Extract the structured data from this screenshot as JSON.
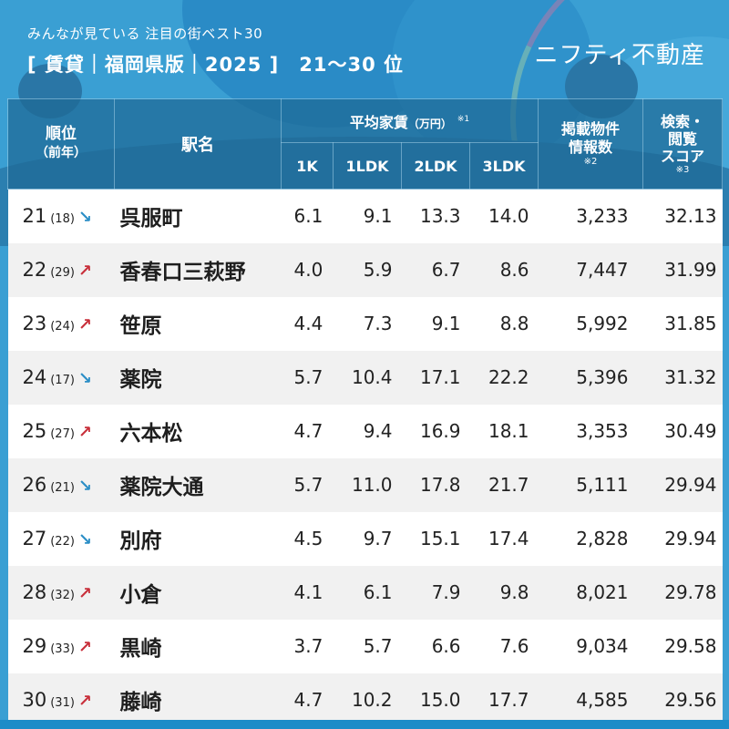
{
  "header": {
    "subtitle": "みんなが見ている 注目の街ベスト30",
    "title": "[ 賃貸｜福岡県版｜2025 ]",
    "rank_range": "21〜30 位",
    "logo": "ニフティ不動産"
  },
  "table": {
    "columns": {
      "rank": "順位",
      "rank_sub": "（前年）",
      "station": "駅名",
      "rent_group": "平均家賃",
      "rent_unit": "（万円）",
      "rent_note": "※1",
      "rent_types": [
        "1K",
        "1LDK",
        "2LDK",
        "3LDK"
      ],
      "listings_line1": "掲載物件",
      "listings_line2": "情報数",
      "listings_note": "※2",
      "score_line1": "検索・",
      "score_line2": "閲覧",
      "score_line3": "スコア",
      "score_note": "※3"
    },
    "rows": [
      {
        "rank": "21",
        "prev": "(18)",
        "trend": "down",
        "arrow": "↘",
        "station": "呉服町",
        "k1": "6.1",
        "ldk1": "9.1",
        "ldk2": "13.3",
        "ldk3": "14.0",
        "listings": "3,233",
        "score": "32.13"
      },
      {
        "rank": "22",
        "prev": "(29)",
        "trend": "up",
        "arrow": "↗",
        "station": "香春口三萩野",
        "k1": "4.0",
        "ldk1": "5.9",
        "ldk2": "6.7",
        "ldk3": "8.6",
        "listings": "7,447",
        "score": "31.99"
      },
      {
        "rank": "23",
        "prev": "(24)",
        "trend": "up",
        "arrow": "↗",
        "station": "笹原",
        "k1": "4.4",
        "ldk1": "7.3",
        "ldk2": "9.1",
        "ldk3": "8.8",
        "listings": "5,992",
        "score": "31.85"
      },
      {
        "rank": "24",
        "prev": "(17)",
        "trend": "down",
        "arrow": "↘",
        "station": "薬院",
        "k1": "5.7",
        "ldk1": "10.4",
        "ldk2": "17.1",
        "ldk3": "22.2",
        "listings": "5,396",
        "score": "31.32"
      },
      {
        "rank": "25",
        "prev": "(27)",
        "trend": "up",
        "arrow": "↗",
        "station": "六本松",
        "k1": "4.7",
        "ldk1": "9.4",
        "ldk2": "16.9",
        "ldk3": "18.1",
        "listings": "3,353",
        "score": "30.49"
      },
      {
        "rank": "26",
        "prev": "(21)",
        "trend": "down",
        "arrow": "↘",
        "station": "薬院大通",
        "k1": "5.7",
        "ldk1": "11.0",
        "ldk2": "17.8",
        "ldk3": "21.7",
        "listings": "5,111",
        "score": "29.94"
      },
      {
        "rank": "27",
        "prev": "(22)",
        "trend": "down",
        "arrow": "↘",
        "station": "別府",
        "k1": "4.5",
        "ldk1": "9.7",
        "ldk2": "15.1",
        "ldk3": "17.4",
        "listings": "2,828",
        "score": "29.94"
      },
      {
        "rank": "28",
        "prev": "(32)",
        "trend": "up",
        "arrow": "↗",
        "station": "小倉",
        "k1": "4.1",
        "ldk1": "6.1",
        "ldk2": "7.9",
        "ldk3": "9.8",
        "listings": "8,021",
        "score": "29.78"
      },
      {
        "rank": "29",
        "prev": "(33)",
        "trend": "up",
        "arrow": "↗",
        "station": "黒崎",
        "k1": "3.7",
        "ldk1": "5.7",
        "ldk2": "6.6",
        "ldk3": "7.6",
        "listings": "9,034",
        "score": "29.58"
      },
      {
        "rank": "30",
        "prev": "(31)",
        "trend": "up",
        "arrow": "↗",
        "station": "藤崎",
        "k1": "4.7",
        "ldk1": "10.2",
        "ldk2": "15.0",
        "ldk3": "17.7",
        "listings": "4,585",
        "score": "29.56"
      }
    ]
  },
  "colors": {
    "background": "#3a9fd3",
    "header_cell": "#1e6996",
    "arrow_down": "#2b8ec6",
    "arrow_up": "#c8303b",
    "row_alt": "#f1f1f1"
  }
}
